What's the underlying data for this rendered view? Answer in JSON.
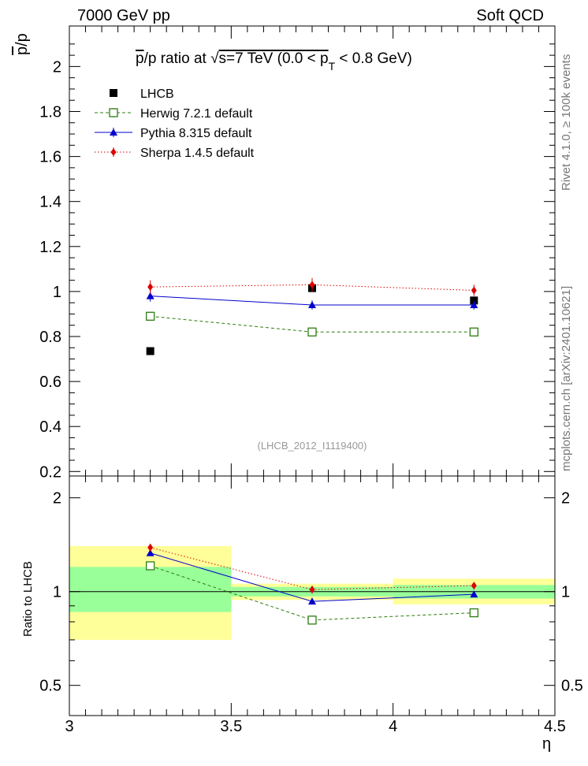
{
  "header": {
    "left": "7000 GeV pp",
    "right": "Soft QCD"
  },
  "side_labels": {
    "rivet": "Rivet 4.1.0, ≥ 100k events",
    "mcplots": "mcplots.cern.ch [arXiv:2401.10621]"
  },
  "chart_data": [
    {
      "type": "scatter",
      "panel": "main",
      "title": "p̄/p ratio at √s=7 TeV (0.0 < p_T < 0.8 GeV)",
      "title_parts": {
        "prefix": "p",
        "mid": "/p ratio at  ",
        "sqrt": "√",
        "s_text": "s=7 TeV (0.0 < p",
        "sub": "T",
        "suffix": " < 0.8 GeV)"
      },
      "ylabel": "p̄/p",
      "ylabel_parts": {
        "bar": "p",
        "rest": "/p"
      },
      "xlim": [
        3,
        4.5
      ],
      "ylim": [
        0.18,
        2.18
      ],
      "yticks": [
        "0.2",
        "0.4",
        "0.6",
        "0.8",
        "1",
        "1.2",
        "1.4",
        "1.6",
        "1.8",
        "2"
      ],
      "analysis_id": "(LHCB_2012_I1119400)",
      "x": [
        3.25,
        3.75,
        4.25
      ],
      "series": [
        {
          "name": "LHCB",
          "color": "#000000",
          "marker": "square",
          "line": "none",
          "values": [
            0.735,
            1.015,
            0.96
          ],
          "errors": [
            0.005,
            0.01,
            0.01
          ]
        },
        {
          "name": "Herwig 7.2.1 default",
          "color": "#2e7d10",
          "marker": "open-square",
          "line": "dashed",
          "values": [
            0.89,
            0.82,
            0.82
          ],
          "errors": [
            0.02,
            0.02,
            0.02
          ]
        },
        {
          "name": "Pythia 8.315 default",
          "color": "#0000cc",
          "marker": "triangle",
          "line": "solid",
          "values": [
            0.98,
            0.94,
            0.94
          ],
          "errors": [
            0.025,
            0.02,
            0.02
          ]
        },
        {
          "name": "Sherpa 1.4.5 default",
          "color": "#dd0000",
          "marker": "diamond",
          "line": "dotted",
          "values": [
            1.02,
            1.03,
            1.005
          ],
          "errors": [
            0.03,
            0.03,
            0.025
          ]
        }
      ]
    },
    {
      "type": "scatter",
      "panel": "ratio",
      "ylabel": "Ratio to LHCB",
      "xlabel": "η",
      "xlim": [
        3,
        4.5
      ],
      "ylim": [
        0.4,
        2.35
      ],
      "yscale": "log",
      "xticks": [
        "3",
        "3.5",
        "4",
        "4.5"
      ],
      "yticks": [
        "0.5",
        "1",
        "2"
      ],
      "bands": [
        {
          "xlo": 3.0,
          "xhi": 3.5,
          "yellow": [
            0.7,
            1.4
          ],
          "green": [
            0.86,
            1.2
          ]
        },
        {
          "xlo": 3.5,
          "xhi": 4.0,
          "yellow": [
            0.94,
            1.06
          ],
          "green": [
            0.965,
            1.035
          ]
        },
        {
          "xlo": 4.0,
          "xhi": 4.5,
          "yellow": [
            0.91,
            1.1
          ],
          "green": [
            0.95,
            1.05
          ]
        }
      ],
      "x": [
        3.25,
        3.75,
        4.25
      ],
      "series": [
        {
          "name": "Herwig 7.2.1 default",
          "color": "#2e7d10",
          "marker": "open-square",
          "line": "dashed",
          "values": [
            1.21,
            0.81,
            0.855
          ],
          "errors": [
            0.02,
            0.015,
            0.015
          ]
        },
        {
          "name": "Pythia 8.315 default",
          "color": "#0000cc",
          "marker": "triangle",
          "line": "solid",
          "values": [
            1.33,
            0.93,
            0.98
          ],
          "errors": [
            0.03,
            0.02,
            0.02
          ]
        },
        {
          "name": "Sherpa 1.4.5 default",
          "color": "#dd0000",
          "marker": "diamond",
          "line": "dotted",
          "values": [
            1.385,
            1.015,
            1.045
          ],
          "errors": [
            0.04,
            0.03,
            0.025
          ]
        }
      ]
    }
  ]
}
